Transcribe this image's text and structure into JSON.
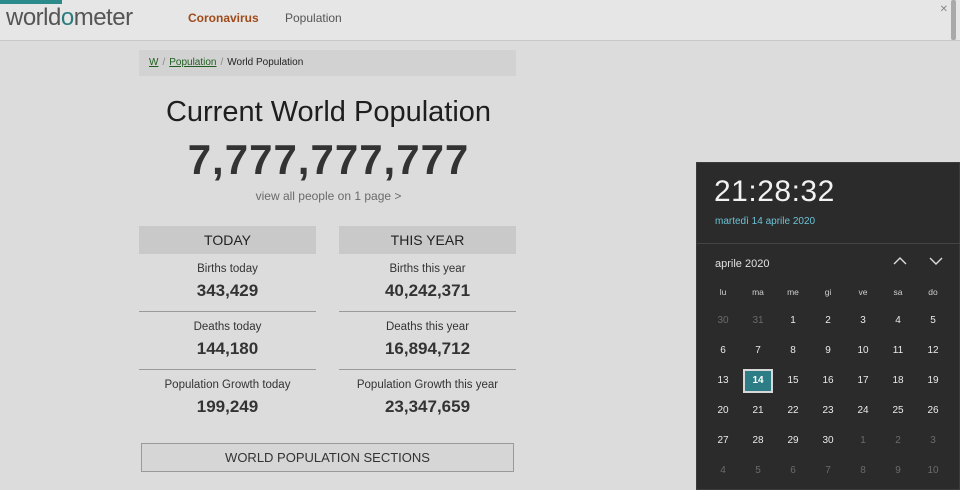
{
  "header": {
    "logo_left": "world",
    "logo_o": "o",
    "logo_right": "meter",
    "nav": [
      "Coronavirus",
      "Population"
    ]
  },
  "breadcrumb": [
    "W",
    "Population",
    "World Population"
  ],
  "title": "Current World Population",
  "counter": "7,777,777,777",
  "view_link": "view all people on 1 page >",
  "today": {
    "heading": "TODAY",
    "births_label": "Births today",
    "births": "343,429",
    "deaths_label": "Deaths today",
    "deaths": "144,180",
    "growth_label": "Population Growth today",
    "growth": "199,249"
  },
  "this_year": {
    "heading": "THIS YEAR",
    "births_label": "Births this year",
    "births": "40,242,371",
    "deaths_label": "Deaths this year",
    "deaths": "16,894,712",
    "growth_label": "Population Growth this year",
    "growth": "23,347,659"
  },
  "sections_button": "WORLD POPULATION SECTIONS",
  "calendar": {
    "time": "21:28:32",
    "date": "martedì 14 aprile 2020",
    "month": "aprile 2020",
    "weekdays": [
      "lu",
      "ma",
      "me",
      "gi",
      "ve",
      "sa",
      "do"
    ],
    "weeks": [
      [
        "30",
        "31",
        "1",
        "2",
        "3",
        "4",
        "5"
      ],
      [
        "6",
        "7",
        "8",
        "9",
        "10",
        "11",
        "12"
      ],
      [
        "13",
        "14",
        "15",
        "16",
        "17",
        "18",
        "19"
      ],
      [
        "20",
        "21",
        "22",
        "23",
        "24",
        "25",
        "26"
      ],
      [
        "27",
        "28",
        "29",
        "30",
        "1",
        "2",
        "3"
      ],
      [
        "4",
        "5",
        "6",
        "7",
        "8",
        "9",
        "10"
      ]
    ],
    "selected": "14"
  }
}
